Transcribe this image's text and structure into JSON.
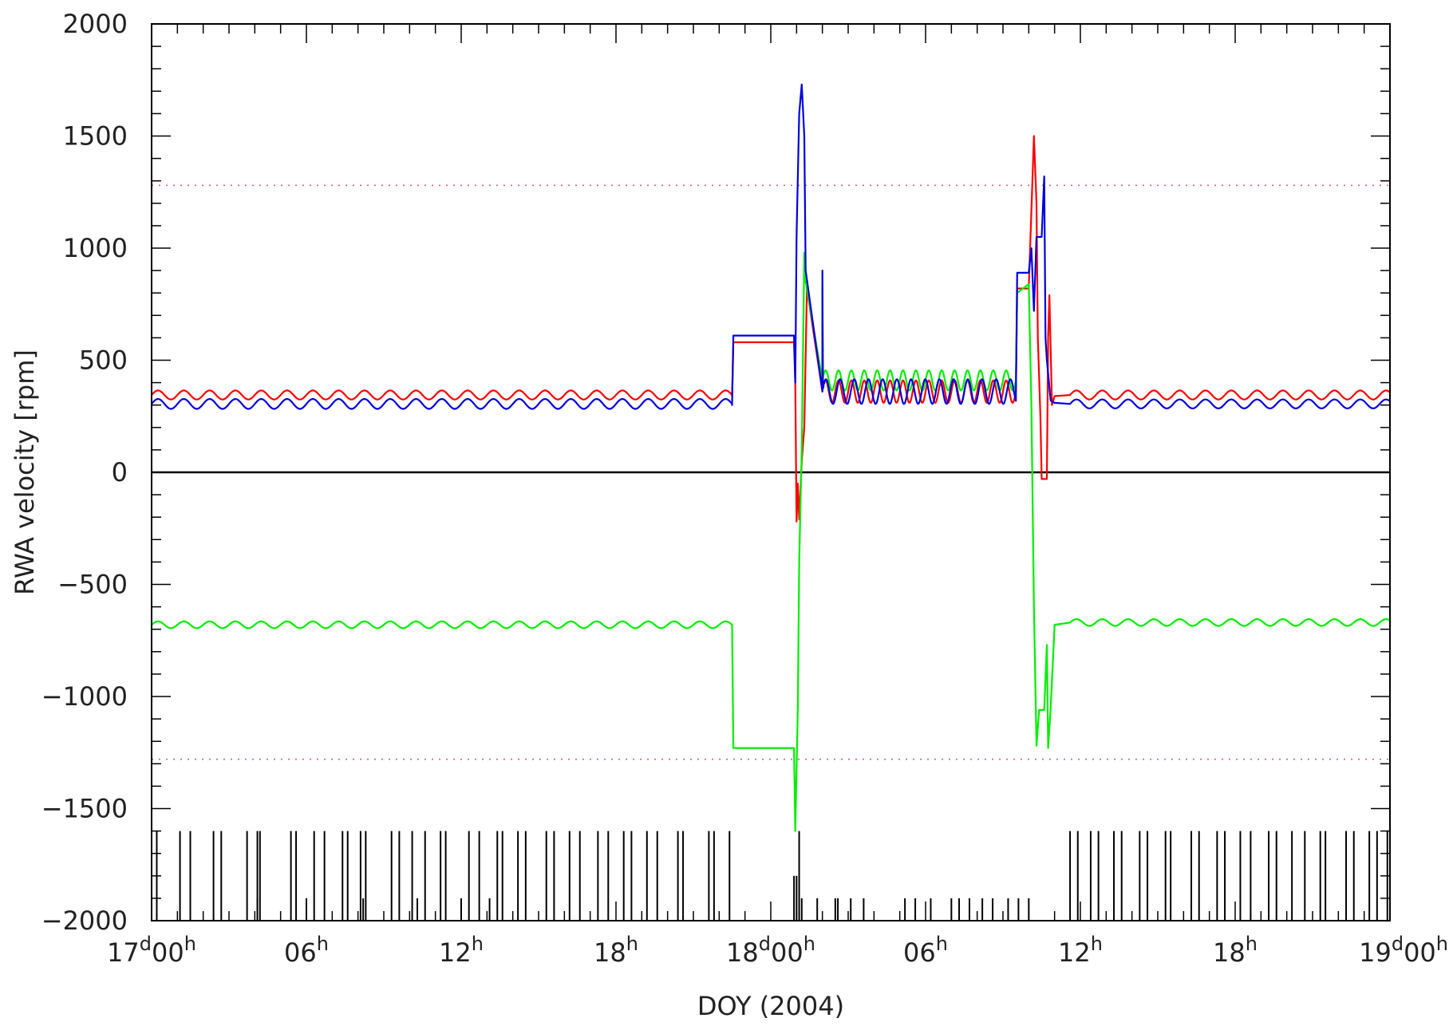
{
  "chart_data": {
    "type": "line",
    "title": "",
    "xlabel": "DOY (2004)",
    "ylabel": "RWA velocity [rpm]",
    "xlim_hours": [
      0,
      48
    ],
    "ylim": [
      -2000,
      2000
    ],
    "grid": false,
    "yticks": [
      -2000,
      -1500,
      -1000,
      -500,
      0,
      500,
      1000,
      1500,
      2000
    ],
    "ytick_labels": [
      "−2000",
      "−1500",
      "−1000",
      "−500",
      "0",
      "500",
      "1000",
      "1500",
      "2000"
    ],
    "xticks": [
      {
        "hour": 0,
        "day": "17",
        "d": "d",
        "hh": "00",
        "h": "h"
      },
      {
        "hour": 6,
        "day": "",
        "d": "",
        "hh": "06",
        "h": "h"
      },
      {
        "hour": 12,
        "day": "",
        "d": "",
        "hh": "12",
        "h": "h"
      },
      {
        "hour": 18,
        "day": "",
        "d": "",
        "hh": "18",
        "h": "h"
      },
      {
        "hour": 24,
        "day": "18",
        "d": "d",
        "hh": "00",
        "h": "h"
      },
      {
        "hour": 30,
        "day": "",
        "d": "",
        "hh": "06",
        "h": "h"
      },
      {
        "hour": 36,
        "day": "",
        "d": "",
        "hh": "12",
        "h": "h"
      },
      {
        "hour": 42,
        "day": "",
        "d": "",
        "hh": "18",
        "h": "h"
      },
      {
        "hour": 48,
        "day": "19",
        "d": "d",
        "hh": "00",
        "h": "h"
      }
    ],
    "zero_line": 0,
    "limit_lines": [
      1280,
      -1280
    ],
    "colors": {
      "red": "#ff0000",
      "green": "#00ee00",
      "blue": "#0000dd",
      "black": "#000000",
      "limit": "#cc6677"
    },
    "series": [
      {
        "color": "red",
        "segments": [
          {
            "x": [
              0,
              22.5
            ],
            "mean": 345,
            "amp": 20,
            "period": 1.0
          },
          {
            "x": [
              26.0,
              33.5
            ],
            "mean": 360,
            "amp": 50,
            "period": 0.5
          },
          {
            "x": [
              35.6,
              48
            ],
            "mean": 345,
            "amp": 20,
            "period": 1.0
          }
        ],
        "points": [
          [
            22.5,
            340
          ],
          [
            22.55,
            580
          ],
          [
            24.9,
            580
          ],
          [
            24.95,
            400
          ],
          [
            25.0,
            -220
          ],
          [
            25.05,
            -50
          ],
          [
            25.1,
            -210
          ],
          [
            25.2,
            50
          ],
          [
            25.3,
            200
          ],
          [
            25.4,
            820
          ],
          [
            26.0,
            820
          ],
          [
            26.05,
            400
          ],
          [
            33.5,
            360
          ],
          [
            33.55,
            820
          ],
          [
            34.0,
            820
          ],
          [
            34.2,
            1500
          ],
          [
            34.3,
            1200
          ],
          [
            34.35,
            600
          ],
          [
            34.45,
            250
          ],
          [
            34.5,
            -30
          ],
          [
            34.7,
            -30
          ],
          [
            34.75,
            600
          ],
          [
            34.8,
            790
          ],
          [
            34.9,
            300
          ],
          [
            35.0,
            340
          ],
          [
            35.6,
            345
          ]
        ]
      },
      {
        "color": "green",
        "segments": [
          {
            "x": [
              0,
              22.5
            ],
            "mean": -680,
            "amp": 15,
            "period": 1.0
          },
          {
            "x": [
              26.0,
              33.5
            ],
            "mean": 410,
            "amp": 45,
            "period": 0.5
          },
          {
            "x": [
              35.6,
              48
            ],
            "mean": -670,
            "amp": 15,
            "period": 1.0
          }
        ],
        "points": [
          [
            22.5,
            -680
          ],
          [
            22.55,
            -1230
          ],
          [
            24.9,
            -1230
          ],
          [
            24.95,
            -1600
          ],
          [
            25.05,
            -1050
          ],
          [
            25.1,
            -400
          ],
          [
            25.2,
            100
          ],
          [
            25.3,
            980
          ],
          [
            25.35,
            850
          ],
          [
            26.0,
            840
          ],
          [
            26.05,
            450
          ],
          [
            33.5,
            400
          ],
          [
            33.55,
            800
          ],
          [
            34.0,
            840
          ],
          [
            34.1,
            300
          ],
          [
            34.2,
            -600
          ],
          [
            34.3,
            -1220
          ],
          [
            34.4,
            -1060
          ],
          [
            34.6,
            -1060
          ],
          [
            34.7,
            -770
          ],
          [
            34.75,
            -1230
          ],
          [
            34.85,
            -1050
          ],
          [
            35.0,
            -680
          ],
          [
            35.6,
            -670
          ]
        ]
      },
      {
        "color": "blue",
        "segments": [
          {
            "x": [
              0,
              22.5
            ],
            "mean": 305,
            "amp": 22,
            "period": 1.0
          },
          {
            "x": [
              26.0,
              33.5
            ],
            "mean": 360,
            "amp": 55,
            "period": 0.55
          },
          {
            "x": [
              35.6,
              48
            ],
            "mean": 305,
            "amp": 20,
            "period": 1.0
          }
        ],
        "points": [
          [
            22.5,
            300
          ],
          [
            22.55,
            610
          ],
          [
            24.9,
            610
          ],
          [
            24.95,
            400
          ],
          [
            25.0,
            1050
          ],
          [
            25.1,
            1600
          ],
          [
            25.2,
            1730
          ],
          [
            25.3,
            1500
          ],
          [
            25.35,
            900
          ],
          [
            26.0,
            900
          ],
          [
            26.05,
            400
          ],
          [
            33.5,
            360
          ],
          [
            33.55,
            890
          ],
          [
            34.0,
            890
          ],
          [
            34.1,
            1000
          ],
          [
            34.2,
            720
          ],
          [
            34.3,
            1050
          ],
          [
            34.5,
            1050
          ],
          [
            34.6,
            1320
          ],
          [
            34.65,
            600
          ],
          [
            34.7,
            500
          ],
          [
            34.85,
            320
          ],
          [
            35.0,
            310
          ],
          [
            35.6,
            305
          ]
        ]
      }
    ],
    "events": {
      "long": [
        0.2,
        1.1,
        1.5,
        2.4,
        2.7,
        3.7,
        4.1,
        4.2,
        5.4,
        5.6,
        6.3,
        6.7,
        7.4,
        7.6,
        8.1,
        8.3,
        9.3,
        9.6,
        10.1,
        10.6,
        11.2,
        11.4,
        12.3,
        12.7,
        13.4,
        13.6,
        14.2,
        14.5,
        15.3,
        15.6,
        16.2,
        16.6,
        17.3,
        17.7,
        18.3,
        18.6,
        19.2,
        19.6,
        20.4,
        20.6,
        21.6,
        21.8,
        22.4,
        25.1,
        35.6,
        35.9,
        36.4,
        36.7,
        37.3,
        37.6,
        38.3,
        38.6,
        39.3,
        39.5,
        40.3,
        40.6,
        41.3,
        41.6,
        42.2,
        42.6,
        43.3,
        43.6,
        44.2,
        44.7,
        45.3,
        45.5,
        46.3,
        46.6,
        47.2,
        47.5,
        47.9
      ],
      "medium": [
        24.9,
        25.0
      ],
      "short": [
        4.1,
        6.0,
        8.2,
        10.3,
        12.0,
        13.1,
        25.2,
        25.8,
        26.5,
        26.6,
        27.1,
        27.6,
        29.2,
        29.6,
        30.2,
        31.0,
        31.3,
        31.7,
        32.2,
        32.6,
        33.2,
        33.6,
        34.0
      ]
    }
  }
}
